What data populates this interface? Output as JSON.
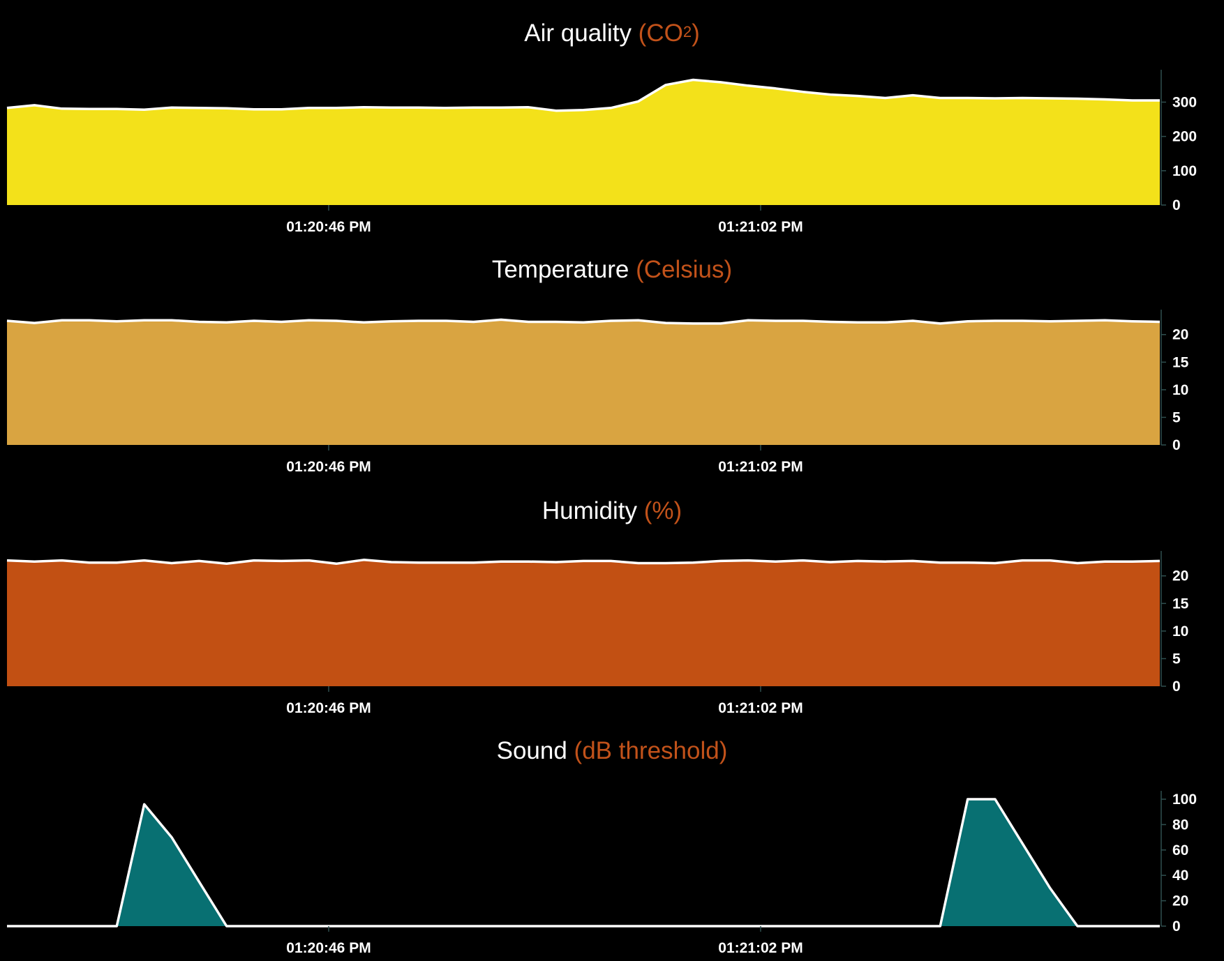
{
  "x_ticks": [
    "01:20:46 PM",
    "01:21:02 PM"
  ],
  "chart_data": [
    {
      "type": "area",
      "title": "Air quality",
      "title_unit_prefix": "(CO",
      "title_unit_sup": "2",
      "title_unit_suffix": ")",
      "color": "#f3e11a",
      "ylim": [
        0,
        370
      ],
      "yticks": [
        0,
        100,
        200,
        300
      ],
      "values": [
        283,
        291,
        281,
        280,
        280,
        278,
        284,
        283,
        282,
        279,
        279,
        283,
        283,
        285,
        284,
        284,
        283,
        284,
        284,
        285,
        275,
        277,
        283,
        302,
        350,
        365,
        358,
        348,
        340,
        330,
        322,
        318,
        312,
        320,
        312,
        312,
        311,
        312,
        311,
        310,
        308,
        305,
        305
      ]
    },
    {
      "type": "area",
      "title": "Temperature",
      "title_unit_prefix": "(Celsius)",
      "title_unit_sup": "",
      "title_unit_suffix": "",
      "color": "#d9a441",
      "ylim": [
        0,
        23
      ],
      "yticks": [
        0,
        5,
        10,
        15,
        20
      ],
      "values": [
        22.5,
        22.1,
        22.6,
        22.6,
        22.4,
        22.6,
        22.6,
        22.3,
        22.2,
        22.5,
        22.3,
        22.6,
        22.5,
        22.2,
        22.4,
        22.5,
        22.5,
        22.3,
        22.7,
        22.3,
        22.3,
        22.2,
        22.5,
        22.6,
        22.1,
        22.0,
        22.0,
        22.6,
        22.5,
        22.5,
        22.3,
        22.2,
        22.2,
        22.5,
        22.0,
        22.4,
        22.5,
        22.5,
        22.4,
        22.5,
        22.6,
        22.4,
        22.3
      ]
    },
    {
      "type": "area",
      "title": "Humidity",
      "title_unit_prefix": "(%)",
      "title_unit_sup": "",
      "title_unit_suffix": "",
      "color": "#c25013",
      "ylim": [
        0,
        23
      ],
      "yticks": [
        0,
        5,
        10,
        15,
        20
      ],
      "values": [
        22.8,
        22.6,
        22.8,
        22.4,
        22.4,
        22.8,
        22.3,
        22.7,
        22.2,
        22.8,
        22.7,
        22.8,
        22.2,
        22.9,
        22.5,
        22.4,
        22.4,
        22.4,
        22.6,
        22.6,
        22.5,
        22.7,
        22.7,
        22.3,
        22.3,
        22.4,
        22.7,
        22.8,
        22.6,
        22.8,
        22.5,
        22.7,
        22.6,
        22.7,
        22.4,
        22.4,
        22.3,
        22.8,
        22.8,
        22.3,
        22.6,
        22.6,
        22.7
      ]
    },
    {
      "type": "area",
      "title": "Sound",
      "title_unit_prefix": "(dB threshold)",
      "title_unit_sup": "",
      "title_unit_suffix": "",
      "color": "#087072",
      "ylim": [
        0,
        100
      ],
      "yticks": [
        0,
        20,
        40,
        60,
        80,
        100
      ],
      "values": [
        0,
        0,
        0,
        0,
        0,
        96,
        70,
        35,
        0,
        0,
        0,
        0,
        0,
        0,
        0,
        0,
        0,
        0,
        0,
        0,
        0,
        0,
        0,
        0,
        0,
        0,
        0,
        0,
        0,
        0,
        0,
        0,
        0,
        0,
        0,
        100,
        100,
        65,
        30,
        0,
        0,
        0,
        0
      ]
    }
  ]
}
